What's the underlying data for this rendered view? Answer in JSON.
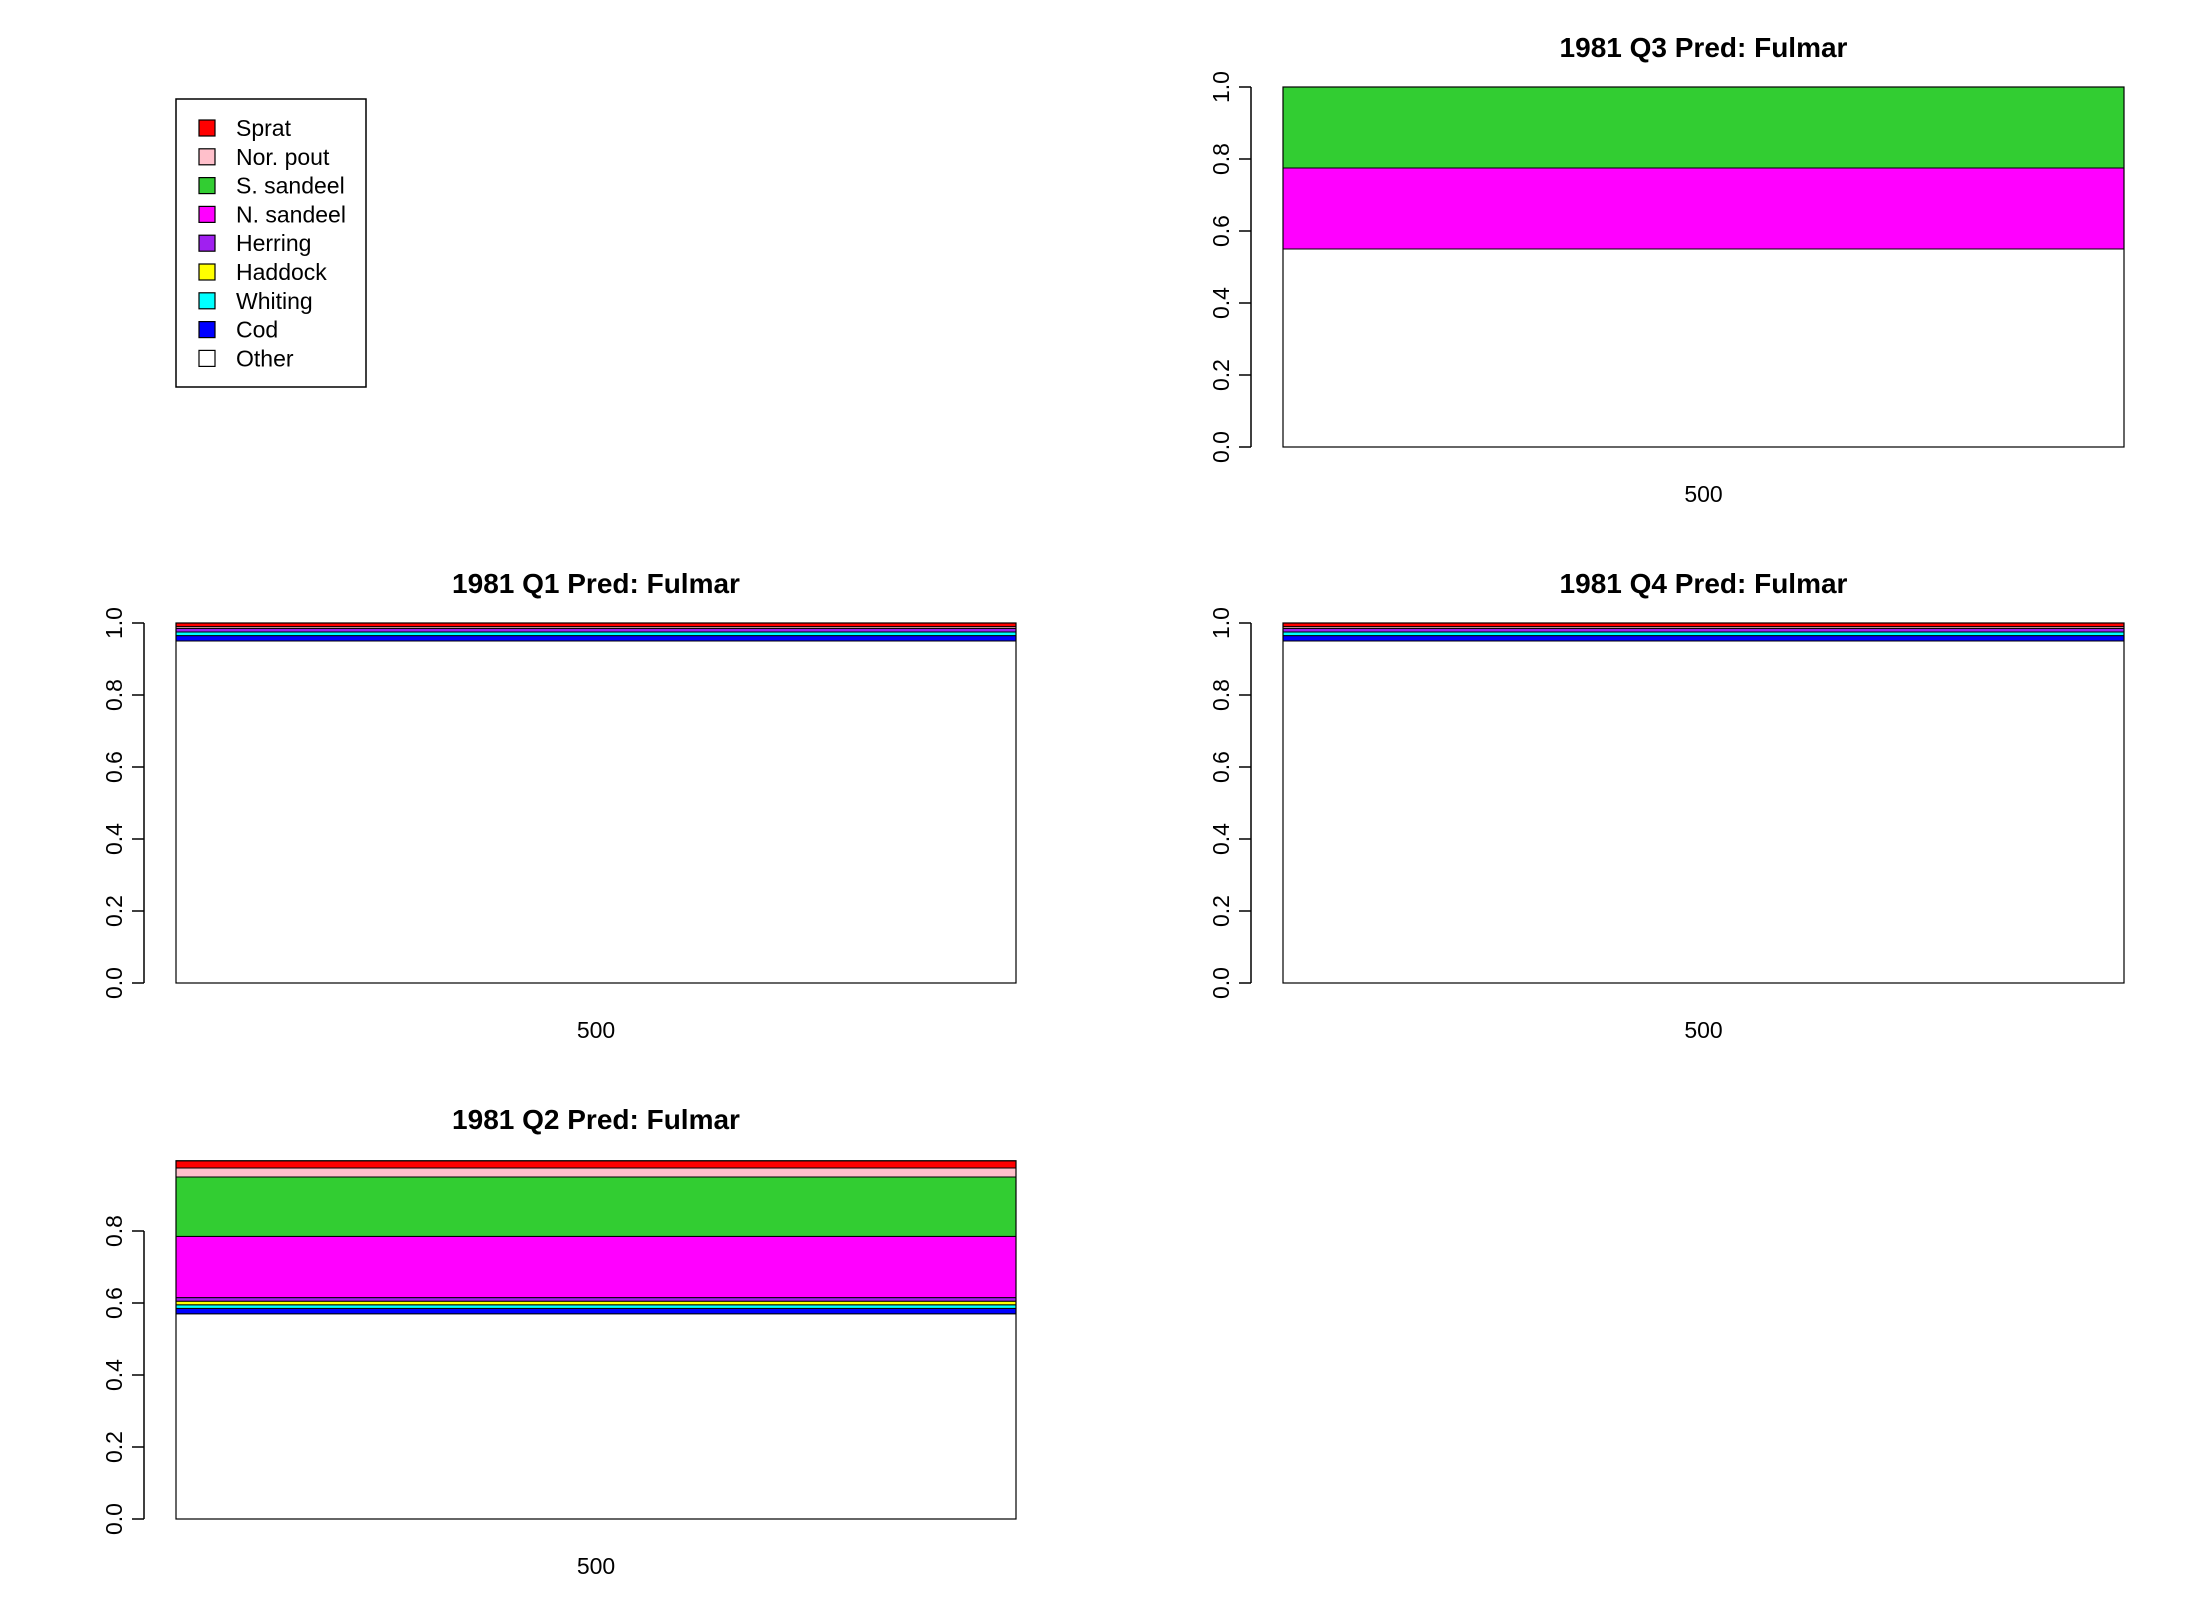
{
  "legend": {
    "items": [
      {
        "label": "Sprat",
        "color": "#FF0000"
      },
      {
        "label": "Nor. pout",
        "color": "#FFC0CB"
      },
      {
        "label": "S. sandeel",
        "color": "#32CD32"
      },
      {
        "label": "N. sandeel",
        "color": "#FF00FF"
      },
      {
        "label": "Herring",
        "color": "#A020F0"
      },
      {
        "label": "Haddock",
        "color": "#FFFF00"
      },
      {
        "label": "Whiting",
        "color": "#00FFFF"
      },
      {
        "label": "Cod",
        "color": "#0000FF"
      },
      {
        "label": "Other",
        "color": "#FFFFFF"
      }
    ]
  },
  "chart_data": [
    {
      "type": "bar",
      "stacked": true,
      "title": "1981 Q3  Pred: Fulmar",
      "categories": [
        "500"
      ],
      "ylim": [
        0,
        1
      ],
      "yticks": [
        "0.0",
        "0.2",
        "0.4",
        "0.6",
        "0.8",
        "1.0"
      ],
      "series": [
        {
          "name": "Other",
          "values": [
            0.55
          ]
        },
        {
          "name": "Cod",
          "values": [
            0.0
          ]
        },
        {
          "name": "Whiting",
          "values": [
            0.0
          ]
        },
        {
          "name": "Haddock",
          "values": [
            0.0
          ]
        },
        {
          "name": "Herring",
          "values": [
            0.0
          ]
        },
        {
          "name": "N. sandeel",
          "values": [
            0.225
          ]
        },
        {
          "name": "S. sandeel",
          "values": [
            0.225
          ]
        },
        {
          "name": "Nor. pout",
          "values": [
            0.0
          ]
        },
        {
          "name": "Sprat",
          "values": [
            0.0
          ]
        }
      ]
    },
    {
      "type": "bar",
      "stacked": true,
      "title": "1981 Q1  Pred: Fulmar",
      "categories": [
        "500"
      ],
      "ylim": [
        0,
        1
      ],
      "yticks": [
        "0.0",
        "0.2",
        "0.4",
        "0.6",
        "0.8",
        "1.0"
      ],
      "series": [
        {
          "name": "Other",
          "values": [
            0.95
          ]
        },
        {
          "name": "Cod",
          "values": [
            0.015
          ]
        },
        {
          "name": "Whiting",
          "values": [
            0.01
          ]
        },
        {
          "name": "Haddock",
          "values": [
            0.0
          ]
        },
        {
          "name": "Herring",
          "values": [
            0.01
          ]
        },
        {
          "name": "N. sandeel",
          "values": [
            0.0
          ]
        },
        {
          "name": "S. sandeel",
          "values": [
            0.0
          ]
        },
        {
          "name": "Nor. pout",
          "values": [
            0.005
          ]
        },
        {
          "name": "Sprat",
          "values": [
            0.01
          ]
        }
      ]
    },
    {
      "type": "bar",
      "stacked": true,
      "title": "1981 Q4  Pred: Fulmar",
      "categories": [
        "500"
      ],
      "ylim": [
        0,
        1
      ],
      "yticks": [
        "0.0",
        "0.2",
        "0.4",
        "0.6",
        "0.8",
        "1.0"
      ],
      "series": [
        {
          "name": "Other",
          "values": [
            0.95
          ]
        },
        {
          "name": "Cod",
          "values": [
            0.015
          ]
        },
        {
          "name": "Whiting",
          "values": [
            0.01
          ]
        },
        {
          "name": "Haddock",
          "values": [
            0.0
          ]
        },
        {
          "name": "Herring",
          "values": [
            0.01
          ]
        },
        {
          "name": "N. sandeel",
          "values": [
            0.0
          ]
        },
        {
          "name": "S. sandeel",
          "values": [
            0.0
          ]
        },
        {
          "name": "Nor. pout",
          "values": [
            0.005
          ]
        },
        {
          "name": "Sprat",
          "values": [
            0.01
          ]
        }
      ]
    },
    {
      "type": "bar",
      "stacked": true,
      "title": "1981 Q2  Pred: Fulmar",
      "categories": [
        "500"
      ],
      "ylim": [
        0,
        1
      ],
      "yticks": [
        "0.0",
        "0.2",
        "0.4",
        "0.6",
        "0.8"
      ],
      "series": [
        {
          "name": "Other",
          "values": [
            0.57
          ]
        },
        {
          "name": "Cod",
          "values": [
            0.015
          ]
        },
        {
          "name": "Whiting",
          "values": [
            0.01
          ]
        },
        {
          "name": "Haddock",
          "values": [
            0.01
          ]
        },
        {
          "name": "Herring",
          "values": [
            0.01
          ]
        },
        {
          "name": "N. sandeel",
          "values": [
            0.17
          ]
        },
        {
          "name": "S. sandeel",
          "values": [
            0.165
          ]
        },
        {
          "name": "Nor. pout",
          "values": [
            0.025
          ]
        },
        {
          "name": "Sprat",
          "values": [
            0.02
          ]
        }
      ]
    }
  ]
}
